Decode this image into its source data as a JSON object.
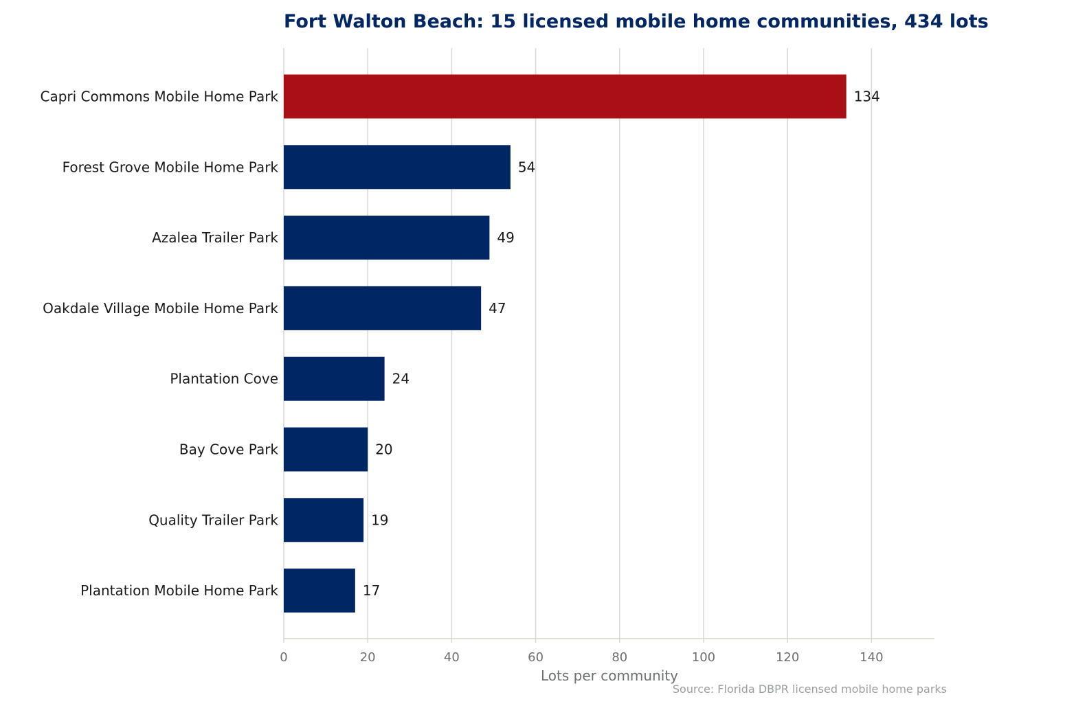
{
  "chart_data": {
    "type": "bar",
    "orientation": "horizontal",
    "title": "Fort Walton Beach: 15 licensed mobile home communities, 434 lots",
    "xlabel": "Lots per community",
    "ylabel": "",
    "xlim": [
      0,
      155
    ],
    "xticks": [
      0,
      20,
      40,
      60,
      80,
      100,
      120,
      140
    ],
    "grid": "vertical",
    "categories": [
      "Capri Commons Mobile Home Park",
      "Forest Grove Mobile Home Park",
      "Azalea Trailer Park",
      "Oakdale Village Mobile Home Park",
      "Plantation Cove",
      "Bay Cove Park",
      "Quality Trailer Park",
      "Plantation Mobile Home Park"
    ],
    "values": [
      134,
      54,
      49,
      47,
      24,
      20,
      19,
      17
    ],
    "highlight_index": 0,
    "source": "Source: Florida DBPR licensed mobile home parks"
  },
  "colors": {
    "highlight": "#a81016",
    "bar": "#002664",
    "title": "#002664",
    "grid": "#d9d9d9",
    "axis": "#d8d6c8"
  }
}
